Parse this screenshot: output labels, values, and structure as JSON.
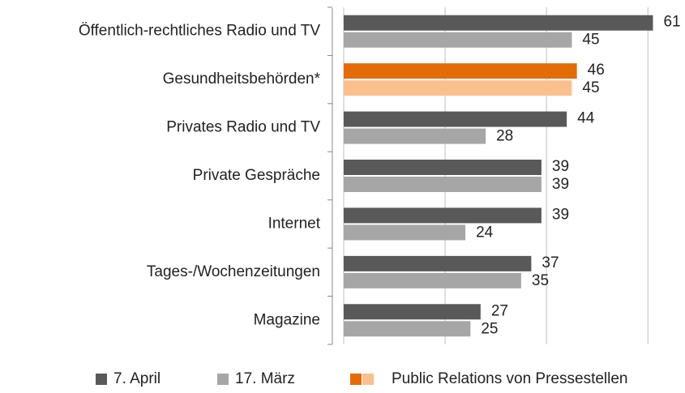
{
  "chart_data": {
    "type": "barh",
    "categories": [
      "Öffentlich-rechtliches Radio und TV",
      "Gesundheitsbehörden*",
      "Privates Radio und TV",
      "Private Gespräche",
      "Internet",
      "Tages-/Wochenzeitungen",
      "Magazine"
    ],
    "series": [
      {
        "name": "7. April",
        "color": "#595959",
        "values": [
          61,
          46,
          44,
          39,
          39,
          37,
          27
        ]
      },
      {
        "name": "17. März",
        "color": "#a6a6a6",
        "values": [
          45,
          45,
          28,
          39,
          24,
          35,
          25
        ]
      }
    ],
    "highlight": {
      "name": "Public Relations von Pressestellen",
      "index": 1,
      "colors": [
        "#e36c09",
        "#fac090"
      ]
    },
    "xlim": [
      0,
      67
    ],
    "xticks": [
      0,
      20,
      40,
      60
    ],
    "grid": true,
    "legend": "bottom"
  }
}
